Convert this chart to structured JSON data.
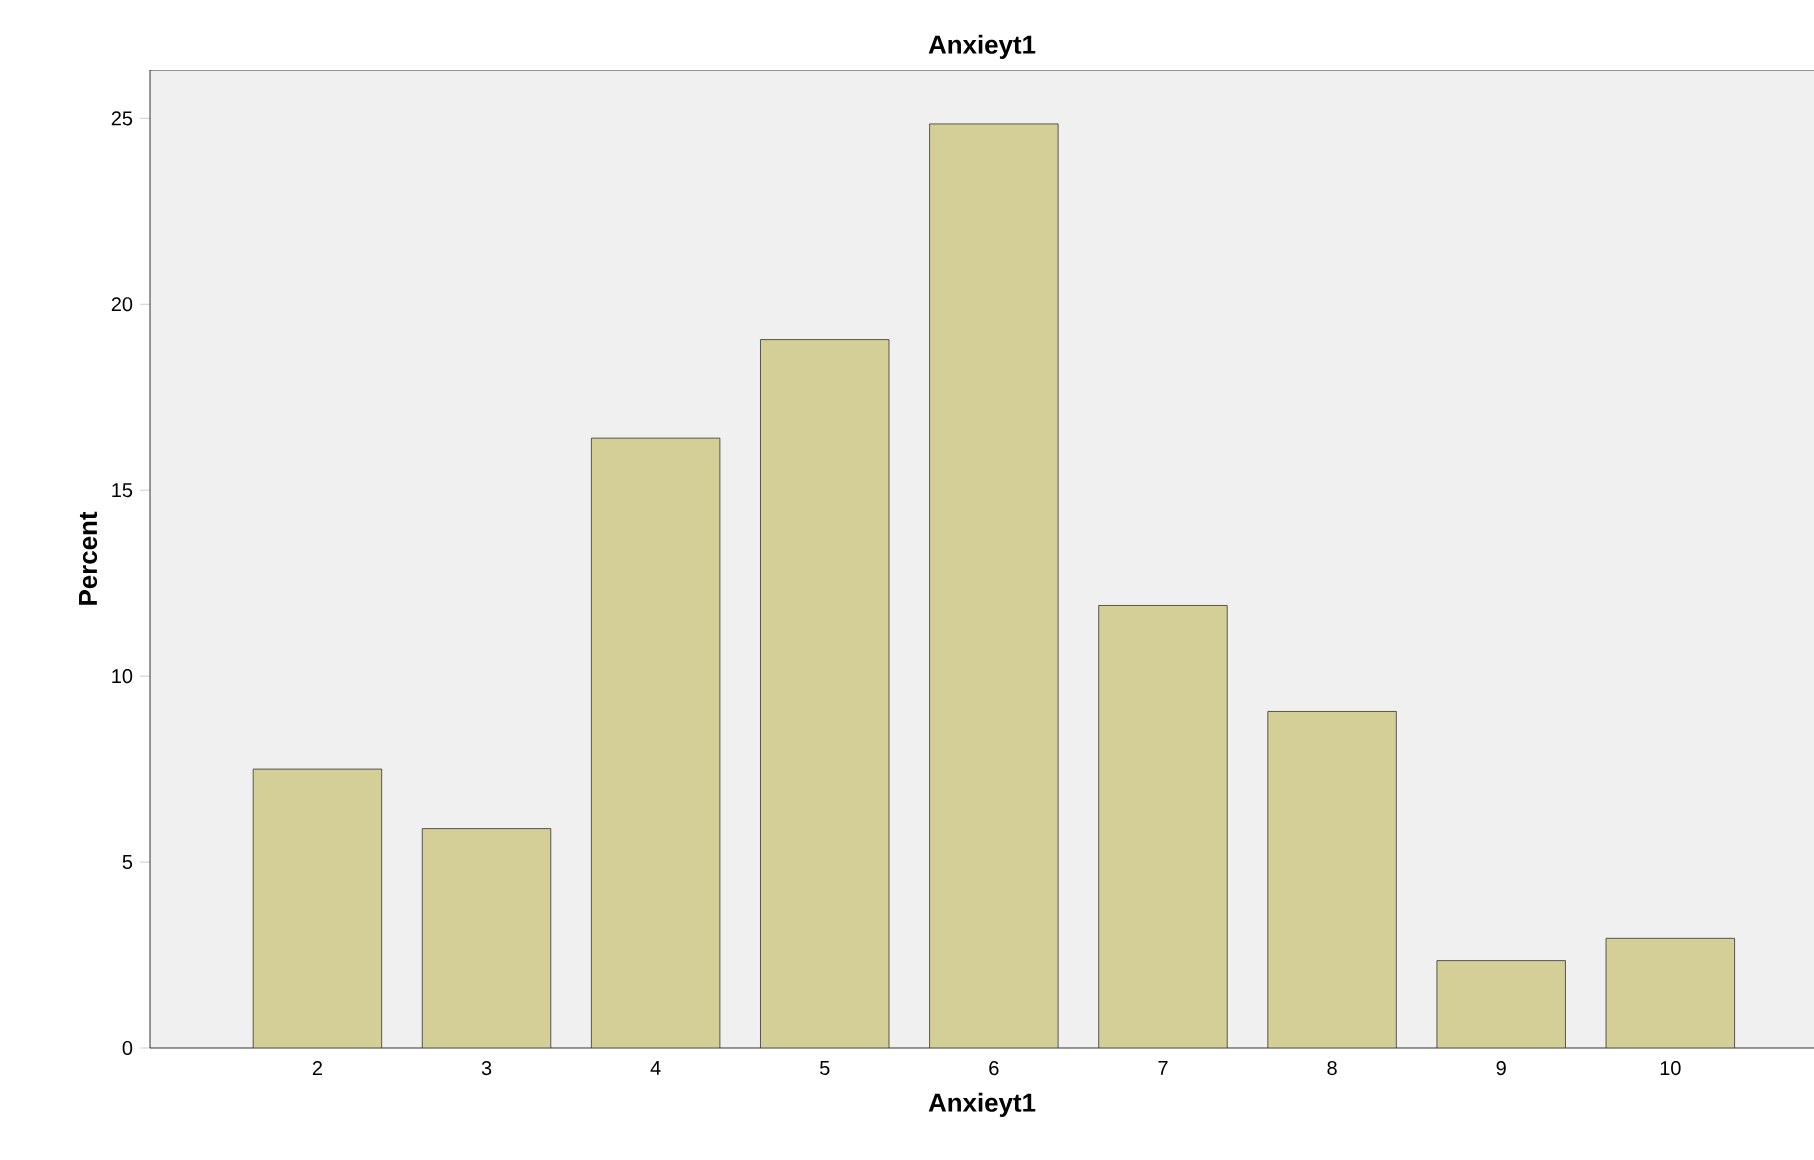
{
  "chart_data": {
    "type": "bar",
    "title": "Anxieyt1",
    "xlabel": "Anxieyt1",
    "ylabel": "Percent",
    "categories": [
      "2",
      "3",
      "4",
      "5",
      "6",
      "7",
      "8",
      "9",
      "10"
    ],
    "values": [
      7.5,
      5.9,
      16.4,
      19.05,
      24.85,
      11.9,
      9.05,
      2.35,
      2.95
    ],
    "color": "#d3cf96",
    "ylim": [
      0,
      26.3
    ],
    "yticks": [
      0,
      5,
      10,
      15,
      20,
      25
    ]
  }
}
